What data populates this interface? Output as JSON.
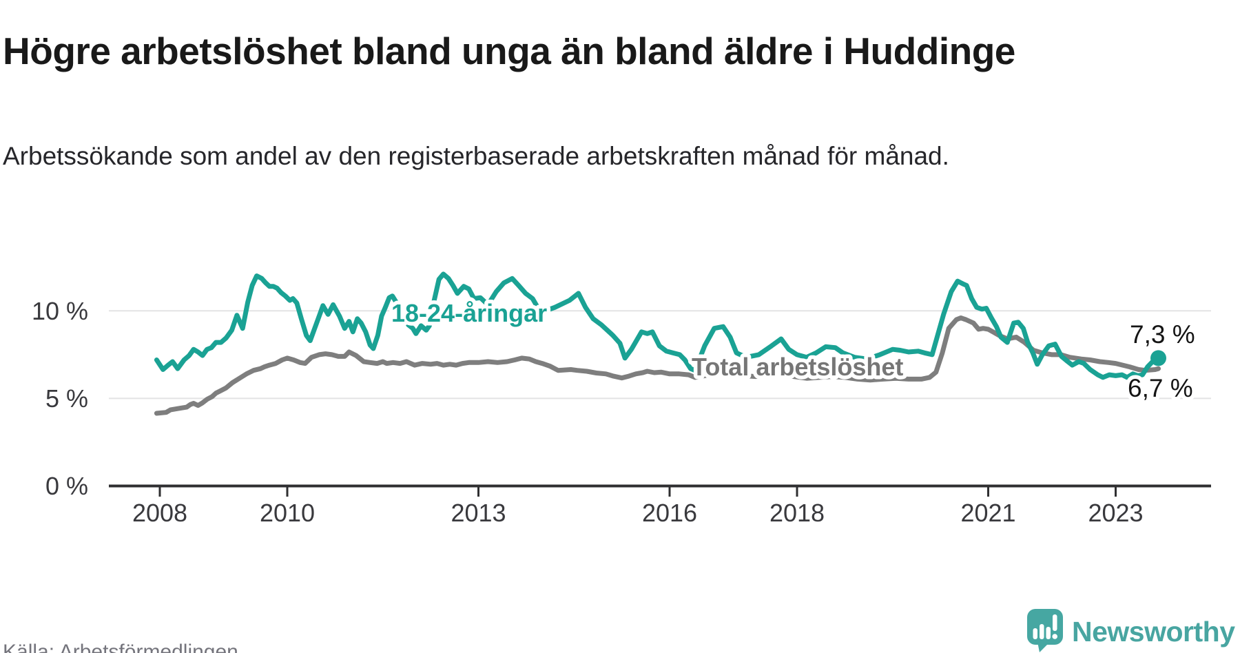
{
  "header": {
    "title": "Högre arbetslöshet bland unga än bland äldre i Huddinge",
    "subtitle": "Arbetssökande som andel av den registerbaserade arbetskraften månad för månad."
  },
  "footer": {
    "source": "Källa: Arbetsförmedlingen",
    "brand": "Newsworthy"
  },
  "colors": {
    "youth_line": "#1aa294",
    "total_line": "#7e7e7e",
    "total_label": "#767676",
    "axis": "#2f2f31",
    "grid": "#e3e3e4",
    "value_label": "#141414",
    "brand_teal": "#46a7a2"
  },
  "chart_data": {
    "type": "line",
    "unit": "%",
    "x_unit": "year (monthly observations)",
    "x_range": [
      2007.9,
      2023.75
    ],
    "ylim": [
      0,
      13
    ],
    "grid": "horizontal only",
    "x_ticks": [
      "2008",
      "2010",
      "2013",
      "2016",
      "2018",
      "2021",
      "2023"
    ],
    "x_tick_years": [
      2008,
      2010,
      2013,
      2016,
      2018,
      2021,
      2023
    ],
    "y_ticks": [
      {
        "value": 0,
        "label": "0 %"
      },
      {
        "value": 5,
        "label": "5 %"
      },
      {
        "value": 10,
        "label": "10 %"
      }
    ],
    "series": [
      {
        "name": "18-24-åringar",
        "color": "#1aa294",
        "end_label": "7,3 %",
        "end_value": 7.3,
        "points": [
          [
            2007.95,
            7.2
          ],
          [
            2008.05,
            6.65
          ],
          [
            2008.13,
            6.9
          ],
          [
            2008.2,
            7.1
          ],
          [
            2008.28,
            6.7
          ],
          [
            2008.38,
            7.2
          ],
          [
            2008.46,
            7.45
          ],
          [
            2008.53,
            7.8
          ],
          [
            2008.6,
            7.65
          ],
          [
            2008.67,
            7.45
          ],
          [
            2008.74,
            7.8
          ],
          [
            2008.81,
            7.9
          ],
          [
            2008.88,
            8.2
          ],
          [
            2008.96,
            8.2
          ],
          [
            2009.04,
            8.45
          ],
          [
            2009.13,
            8.9
          ],
          [
            2009.21,
            9.75
          ],
          [
            2009.3,
            9.0
          ],
          [
            2009.38,
            10.5
          ],
          [
            2009.45,
            11.45
          ],
          [
            2009.52,
            12.0
          ],
          [
            2009.6,
            11.85
          ],
          [
            2009.66,
            11.6
          ],
          [
            2009.72,
            11.4
          ],
          [
            2009.78,
            11.4
          ],
          [
            2009.84,
            11.3
          ],
          [
            2009.9,
            11.05
          ],
          [
            2009.97,
            10.85
          ],
          [
            2010.04,
            10.6
          ],
          [
            2010.09,
            10.7
          ],
          [
            2010.15,
            10.45
          ],
          [
            2010.22,
            9.55
          ],
          [
            2010.3,
            8.6
          ],
          [
            2010.36,
            8.3
          ],
          [
            2010.43,
            9.0
          ],
          [
            2010.5,
            9.7
          ],
          [
            2010.56,
            10.3
          ],
          [
            2010.64,
            9.8
          ],
          [
            2010.72,
            10.35
          ],
          [
            2010.82,
            9.7
          ],
          [
            2010.9,
            9.0
          ],
          [
            2010.97,
            9.4
          ],
          [
            2011.03,
            8.8
          ],
          [
            2011.1,
            9.55
          ],
          [
            2011.16,
            9.3
          ],
          [
            2011.23,
            8.8
          ],
          [
            2011.3,
            8.05
          ],
          [
            2011.35,
            7.85
          ],
          [
            2011.42,
            8.6
          ],
          [
            2011.48,
            9.7
          ],
          [
            2011.54,
            10.2
          ],
          [
            2011.6,
            10.75
          ],
          [
            2011.65,
            10.85
          ],
          [
            2011.7,
            10.55
          ],
          [
            2011.75,
            10.3
          ],
          [
            2011.83,
            9.7
          ],
          [
            2011.9,
            9.2
          ],
          [
            2011.97,
            9.0
          ],
          [
            2012.02,
            8.7
          ],
          [
            2012.1,
            9.15
          ],
          [
            2012.18,
            8.9
          ],
          [
            2012.23,
            9.15
          ],
          [
            2012.3,
            10.5
          ],
          [
            2012.38,
            11.8
          ],
          [
            2012.45,
            12.1
          ],
          [
            2012.53,
            11.85
          ],
          [
            2012.6,
            11.45
          ],
          [
            2012.67,
            11.0
          ],
          [
            2012.77,
            11.4
          ],
          [
            2012.85,
            11.25
          ],
          [
            2012.93,
            10.7
          ],
          [
            2013.03,
            10.75
          ],
          [
            2013.15,
            10.35
          ],
          [
            2013.28,
            11.1
          ],
          [
            2013.4,
            11.6
          ],
          [
            2013.53,
            11.85
          ],
          [
            2013.63,
            11.45
          ],
          [
            2013.74,
            11.0
          ],
          [
            2013.85,
            10.7
          ],
          [
            2013.93,
            10.2
          ],
          [
            2014.05,
            10.0
          ],
          [
            2014.2,
            10.2
          ],
          [
            2014.43,
            10.6
          ],
          [
            2014.57,
            11.0
          ],
          [
            2014.68,
            10.2
          ],
          [
            2014.8,
            9.55
          ],
          [
            2014.93,
            9.2
          ],
          [
            2015.11,
            8.6
          ],
          [
            2015.22,
            8.15
          ],
          [
            2015.3,
            7.3
          ],
          [
            2015.4,
            7.8
          ],
          [
            2015.56,
            8.8
          ],
          [
            2015.65,
            8.7
          ],
          [
            2015.73,
            8.8
          ],
          [
            2015.84,
            8.0
          ],
          [
            2015.95,
            7.7
          ],
          [
            2016.05,
            7.6
          ],
          [
            2016.16,
            7.5
          ],
          [
            2016.24,
            7.2
          ],
          [
            2016.33,
            6.7
          ],
          [
            2016.4,
            6.6
          ],
          [
            2016.55,
            8.0
          ],
          [
            2016.7,
            9.0
          ],
          [
            2016.84,
            9.1
          ],
          [
            2016.95,
            8.5
          ],
          [
            2017.05,
            7.6
          ],
          [
            2017.2,
            7.35
          ],
          [
            2017.4,
            7.5
          ],
          [
            2017.6,
            8.0
          ],
          [
            2017.75,
            8.4
          ],
          [
            2017.87,
            7.8
          ],
          [
            2018.0,
            7.5
          ],
          [
            2018.15,
            7.35
          ],
          [
            2018.3,
            7.6
          ],
          [
            2018.45,
            7.95
          ],
          [
            2018.6,
            7.9
          ],
          [
            2018.72,
            7.6
          ],
          [
            2018.9,
            7.35
          ],
          [
            2019.1,
            7.25
          ],
          [
            2019.3,
            7.5
          ],
          [
            2019.5,
            7.8
          ],
          [
            2019.62,
            7.75
          ],
          [
            2019.75,
            7.65
          ],
          [
            2019.9,
            7.7
          ],
          [
            2020.0,
            7.6
          ],
          [
            2020.12,
            7.5
          ],
          [
            2020.3,
            9.8
          ],
          [
            2020.42,
            11.1
          ],
          [
            2020.52,
            11.7
          ],
          [
            2020.6,
            11.55
          ],
          [
            2020.66,
            11.45
          ],
          [
            2020.74,
            10.7
          ],
          [
            2020.82,
            10.2
          ],
          [
            2020.9,
            10.1
          ],
          [
            2020.97,
            10.15
          ],
          [
            2021.05,
            9.6
          ],
          [
            2021.13,
            9.1
          ],
          [
            2021.2,
            8.5
          ],
          [
            2021.3,
            8.2
          ],
          [
            2021.4,
            9.3
          ],
          [
            2021.47,
            9.35
          ],
          [
            2021.55,
            9.0
          ],
          [
            2021.62,
            8.2
          ],
          [
            2021.7,
            7.6
          ],
          [
            2021.77,
            6.95
          ],
          [
            2021.85,
            7.5
          ],
          [
            2021.95,
            8.0
          ],
          [
            2022.05,
            8.1
          ],
          [
            2022.15,
            7.4
          ],
          [
            2022.25,
            7.1
          ],
          [
            2022.32,
            6.9
          ],
          [
            2022.42,
            7.1
          ],
          [
            2022.5,
            7.0
          ],
          [
            2022.6,
            6.65
          ],
          [
            2022.72,
            6.35
          ],
          [
            2022.8,
            6.2
          ],
          [
            2022.9,
            6.35
          ],
          [
            2023.0,
            6.3
          ],
          [
            2023.1,
            6.35
          ],
          [
            2023.18,
            6.2
          ],
          [
            2023.27,
            6.4
          ],
          [
            2023.35,
            6.3
          ],
          [
            2023.42,
            6.35
          ],
          [
            2023.5,
            6.8
          ],
          [
            2023.58,
            7.1
          ],
          [
            2023.67,
            7.3
          ]
        ]
      },
      {
        "name": "Total arbetslöshet",
        "color": "#7e7e7e",
        "end_label": "6,7 %",
        "end_value": 6.7,
        "points": [
          [
            2007.95,
            4.15
          ],
          [
            2008.1,
            4.2
          ],
          [
            2008.17,
            4.35
          ],
          [
            2008.25,
            4.4
          ],
          [
            2008.33,
            4.45
          ],
          [
            2008.42,
            4.5
          ],
          [
            2008.48,
            4.65
          ],
          [
            2008.53,
            4.72
          ],
          [
            2008.6,
            4.6
          ],
          [
            2008.67,
            4.75
          ],
          [
            2008.74,
            4.95
          ],
          [
            2008.82,
            5.1
          ],
          [
            2008.88,
            5.3
          ],
          [
            2008.96,
            5.45
          ],
          [
            2009.04,
            5.6
          ],
          [
            2009.14,
            5.9
          ],
          [
            2009.25,
            6.15
          ],
          [
            2009.36,
            6.4
          ],
          [
            2009.47,
            6.6
          ],
          [
            2009.58,
            6.7
          ],
          [
            2009.64,
            6.8
          ],
          [
            2009.72,
            6.9
          ],
          [
            2009.82,
            7.0
          ],
          [
            2009.92,
            7.2
          ],
          [
            2010.0,
            7.3
          ],
          [
            2010.1,
            7.2
          ],
          [
            2010.2,
            7.05
          ],
          [
            2010.28,
            7.0
          ],
          [
            2010.38,
            7.35
          ],
          [
            2010.5,
            7.5
          ],
          [
            2010.6,
            7.55
          ],
          [
            2010.7,
            7.5
          ],
          [
            2010.8,
            7.4
          ],
          [
            2010.9,
            7.4
          ],
          [
            2010.97,
            7.65
          ],
          [
            2011.08,
            7.45
          ],
          [
            2011.2,
            7.1
          ],
          [
            2011.3,
            7.05
          ],
          [
            2011.41,
            7.0
          ],
          [
            2011.5,
            7.1
          ],
          [
            2011.56,
            7.0
          ],
          [
            2011.66,
            7.05
          ],
          [
            2011.77,
            7.0
          ],
          [
            2011.87,
            7.1
          ],
          [
            2012.0,
            6.9
          ],
          [
            2012.12,
            7.0
          ],
          [
            2012.25,
            6.95
          ],
          [
            2012.35,
            7.0
          ],
          [
            2012.45,
            6.9
          ],
          [
            2012.55,
            6.95
          ],
          [
            2012.65,
            6.9
          ],
          [
            2012.75,
            7.0
          ],
          [
            2012.85,
            7.05
          ],
          [
            2013.0,
            7.05
          ],
          [
            2013.15,
            7.1
          ],
          [
            2013.3,
            7.05
          ],
          [
            2013.45,
            7.1
          ],
          [
            2013.57,
            7.2
          ],
          [
            2013.68,
            7.3
          ],
          [
            2013.8,
            7.25
          ],
          [
            2013.9,
            7.1
          ],
          [
            2014.0,
            7.0
          ],
          [
            2014.12,
            6.85
          ],
          [
            2014.25,
            6.6
          ],
          [
            2014.45,
            6.65
          ],
          [
            2014.55,
            6.6
          ],
          [
            2014.7,
            6.55
          ],
          [
            2014.85,
            6.45
          ],
          [
            2015.0,
            6.4
          ],
          [
            2015.12,
            6.27
          ],
          [
            2015.25,
            6.17
          ],
          [
            2015.36,
            6.27
          ],
          [
            2015.47,
            6.4
          ],
          [
            2015.58,
            6.47
          ],
          [
            2015.65,
            6.55
          ],
          [
            2015.76,
            6.47
          ],
          [
            2015.87,
            6.5
          ],
          [
            2016.0,
            6.4
          ],
          [
            2016.15,
            6.4
          ],
          [
            2016.3,
            6.35
          ],
          [
            2016.4,
            6.2
          ],
          [
            2016.55,
            6.3
          ],
          [
            2016.75,
            6.4
          ],
          [
            2016.95,
            6.35
          ],
          [
            2017.15,
            6.3
          ],
          [
            2017.35,
            6.25
          ],
          [
            2017.55,
            6.3
          ],
          [
            2017.75,
            6.35
          ],
          [
            2017.95,
            6.25
          ],
          [
            2018.15,
            6.15
          ],
          [
            2018.35,
            6.2
          ],
          [
            2018.55,
            6.25
          ],
          [
            2018.75,
            6.2
          ],
          [
            2018.95,
            6.1
          ],
          [
            2019.15,
            6.05
          ],
          [
            2019.35,
            6.1
          ],
          [
            2019.55,
            6.15
          ],
          [
            2019.75,
            6.1
          ],
          [
            2019.95,
            6.1
          ],
          [
            2020.08,
            6.2
          ],
          [
            2020.18,
            6.5
          ],
          [
            2020.28,
            7.6
          ],
          [
            2020.38,
            9.0
          ],
          [
            2020.5,
            9.5
          ],
          [
            2020.57,
            9.6
          ],
          [
            2020.65,
            9.5
          ],
          [
            2020.77,
            9.3
          ],
          [
            2020.85,
            8.95
          ],
          [
            2020.92,
            9.0
          ],
          [
            2021.0,
            8.95
          ],
          [
            2021.1,
            8.75
          ],
          [
            2021.17,
            8.6
          ],
          [
            2021.3,
            8.4
          ],
          [
            2021.44,
            8.5
          ],
          [
            2021.57,
            8.2
          ],
          [
            2021.71,
            7.75
          ],
          [
            2021.85,
            7.6
          ],
          [
            2022.0,
            7.5
          ],
          [
            2022.14,
            7.5
          ],
          [
            2022.28,
            7.35
          ],
          [
            2022.46,
            7.25
          ],
          [
            2022.6,
            7.2
          ],
          [
            2022.75,
            7.1
          ],
          [
            2022.89,
            7.05
          ],
          [
            2023.0,
            7.0
          ],
          [
            2023.11,
            6.9
          ],
          [
            2023.22,
            6.8
          ],
          [
            2023.36,
            6.65
          ],
          [
            2023.47,
            6.6
          ],
          [
            2023.62,
            6.65
          ],
          [
            2023.67,
            6.7
          ]
        ]
      }
    ]
  }
}
